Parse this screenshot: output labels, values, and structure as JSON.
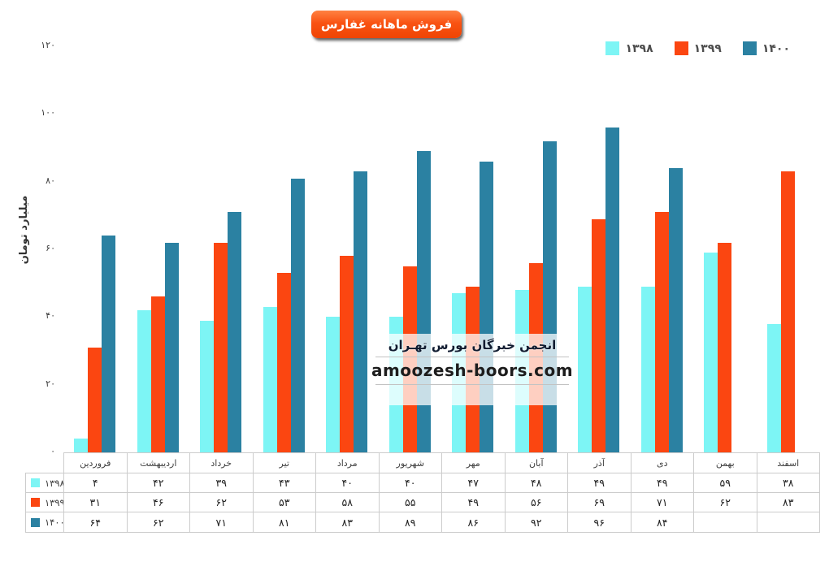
{
  "title": {
    "text": "فروش ماهانه غفارس"
  },
  "y_axis": {
    "title": "میلیارد تومان"
  },
  "watermark": {
    "line1": "انجمن خبرگان بورس تهـران",
    "line2": "amoozesh-boors.com"
  },
  "colors": {
    "series_1398": "#7DF5F5",
    "series_1399": "#FB4611",
    "series_1400": "#2B81A2",
    "title_button": "#F95313",
    "table_border": "#CCCCCC"
  },
  "chart_data": {
    "type": "bar",
    "title": "فروش ماهانه غفارس",
    "xlabel": "",
    "ylabel": "میلیارد تومان",
    "ylim": [
      0,
      120
    ],
    "yticks": [
      0,
      20,
      40,
      60,
      80,
      100,
      120
    ],
    "grid": false,
    "legend_position": "top-right",
    "data_table_below_axis": true,
    "categories": [
      "فروردین",
      "اردیبهشت",
      "خرداد",
      "تیر",
      "مرداد",
      "شهریور",
      "مهر",
      "آبان",
      "آذر",
      "دی",
      "بهمن",
      "اسفند"
    ],
    "series": [
      {
        "name": "۱۳۹۸",
        "color": "#7DF5F5",
        "values": [
          4,
          42,
          39,
          43,
          40,
          40,
          47,
          48,
          49,
          49,
          59,
          38
        ]
      },
      {
        "name": "۱۳۹۹",
        "color": "#FB4611",
        "values": [
          31,
          46,
          62,
          53,
          58,
          55,
          49,
          56,
          69,
          71,
          62,
          83
        ]
      },
      {
        "name": "۱۴۰۰",
        "color": "#2B81A2",
        "values": [
          64,
          62,
          71,
          81,
          83,
          89,
          86,
          92,
          96,
          84,
          null,
          null
        ]
      }
    ]
  }
}
